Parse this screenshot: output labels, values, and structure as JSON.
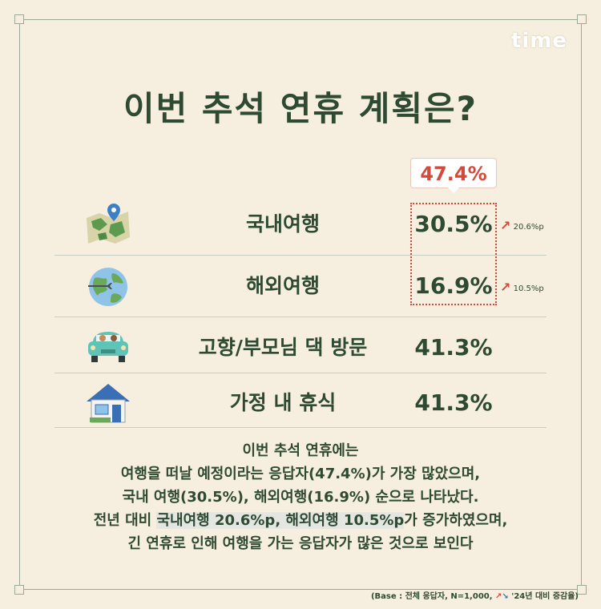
{
  "logo": "time",
  "title": "이번 추석 연휴 계획은?",
  "callout": "47.4%",
  "chart_data": {
    "type": "table",
    "categories": [
      "국내여행",
      "해외여행",
      "고향/부모님 댁 방문",
      "가정 내 휴식"
    ],
    "values": [
      30.5,
      16.9,
      41.3,
      41.3
    ],
    "value_labels": [
      "30.5%",
      "16.9%",
      "41.3%",
      "41.3%"
    ],
    "changes": [
      "20.6%p",
      "10.5%p",
      "",
      ""
    ],
    "combined_highlight": {
      "label": "47.4%",
      "categories": [
        "국내여행",
        "해외여행"
      ]
    },
    "title": "이번 추석 연휴 계획은?"
  },
  "rows": [
    {
      "icon": "map-icon",
      "label": "국내여행",
      "value": "30.5%",
      "change": "20.6%p"
    },
    {
      "icon": "globe-airplane-icon",
      "label": "해외여행",
      "value": "16.9%",
      "change": "10.5%p"
    },
    {
      "icon": "car-icon",
      "label": "고향/부모님 댁 방문",
      "value": "41.3%",
      "change": ""
    },
    {
      "icon": "house-icon",
      "label": "가정 내 휴식",
      "value": "41.3%",
      "change": ""
    }
  ],
  "summary": {
    "line1": "이번 추석 연휴에는",
    "line2": "여행을 떠날 예정이라는 응답자(47.4%)가 가장 많았으며,",
    "line3": "국내 여행(30.5%), 해외여행(16.9%) 순으로 나타났다.",
    "line4_pre": "전년 대비 ",
    "line4_hl": "국내여행 20.6%p, 해외여행 10.5%p",
    "line4_post": "가 증가하였으며,",
    "line5": "긴 연휴로 인해 여행을 가는 응답자가 많은 것으로 보인다"
  },
  "footnote": {
    "base": "(Base :  전체 응답자, N=1,000, ",
    "compare": "'24년 대비 증감율)"
  },
  "colors": {
    "accent": "#d44a3a",
    "text": "#2f4a32",
    "background": "#f6efdf"
  }
}
